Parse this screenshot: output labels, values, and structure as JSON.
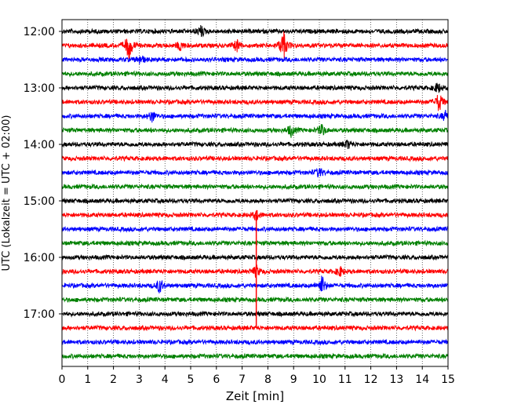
{
  "chart_data": {
    "type": "line",
    "title": "",
    "xlabel": "Zeit  [min]",
    "ylabel": "UTC (Lokalzeit = UTC + 02:00)",
    "xlim": [
      0,
      15
    ],
    "x_ticks": [
      "0",
      "1",
      "2",
      "3",
      "4",
      "5",
      "6",
      "7",
      "8",
      "9",
      "10",
      "11",
      "12",
      "13",
      "14",
      "15"
    ],
    "y_ticks": [
      "12:00",
      "13:00",
      "14:00",
      "15:00",
      "16:00",
      "17:00"
    ],
    "grid": "vertical-dotted",
    "trace_interval_min": 15,
    "trace_colors": [
      "#000000",
      "#ff0000",
      "#0000ff",
      "#008000"
    ],
    "traces": [
      {
        "start": "12:00",
        "color": "#000000",
        "events": [
          {
            "t": 5.4,
            "amp": 0.35
          }
        ]
      },
      {
        "start": "12:15",
        "color": "#ff0000",
        "events": [
          {
            "t": 2.6,
            "amp": 0.9
          },
          {
            "t": 4.6,
            "amp": 0.3
          },
          {
            "t": 6.8,
            "amp": 0.35
          },
          {
            "t": 8.6,
            "amp": 0.9
          }
        ]
      },
      {
        "start": "12:30",
        "color": "#0000ff",
        "events": [
          {
            "t": 3.05,
            "amp": 0.3
          }
        ]
      },
      {
        "start": "12:45",
        "color": "#008000",
        "events": []
      },
      {
        "start": "13:00",
        "color": "#000000",
        "events": [
          {
            "t": 14.6,
            "amp": 0.3
          }
        ]
      },
      {
        "start": "13:15",
        "color": "#ff0000",
        "events": [
          {
            "t": 14.65,
            "amp": 0.6
          }
        ]
      },
      {
        "start": "13:30",
        "color": "#0000ff",
        "events": [
          {
            "t": 3.5,
            "amp": 0.35
          },
          {
            "t": 14.9,
            "amp": 0.3
          }
        ]
      },
      {
        "start": "13:45",
        "color": "#008000",
        "events": [
          {
            "t": 8.9,
            "amp": 0.35
          },
          {
            "t": 10.1,
            "amp": 0.35
          }
        ]
      },
      {
        "start": "14:00",
        "color": "#000000",
        "events": [
          {
            "t": 11.1,
            "amp": 0.25
          }
        ]
      },
      {
        "start": "14:15",
        "color": "#ff0000",
        "events": []
      },
      {
        "start": "14:30",
        "color": "#0000ff",
        "events": [
          {
            "t": 10.0,
            "amp": 0.3
          }
        ]
      },
      {
        "start": "14:45",
        "color": "#008000",
        "events": []
      },
      {
        "start": "15:00",
        "color": "#000000",
        "events": []
      },
      {
        "start": "15:15",
        "color": "#ff0000",
        "events": [
          {
            "t": 7.55,
            "amp": 0.3
          }
        ]
      },
      {
        "start": "15:30",
        "color": "#0000ff",
        "events": []
      },
      {
        "start": "15:45",
        "color": "#008000",
        "events": []
      },
      {
        "start": "16:00",
        "color": "#000000",
        "events": []
      },
      {
        "start": "16:15",
        "color": "#ff0000",
        "events": [
          {
            "t": 7.55,
            "amp": 0.35
          },
          {
            "t": 10.8,
            "amp": 0.3
          }
        ]
      },
      {
        "start": "16:30",
        "color": "#0000ff",
        "events": [
          {
            "t": 3.8,
            "amp": 0.45
          },
          {
            "t": 10.1,
            "amp": 0.6
          }
        ]
      },
      {
        "start": "16:45",
        "color": "#008000",
        "events": []
      },
      {
        "start": "17:00",
        "color": "#000000",
        "events": []
      },
      {
        "start": "17:15",
        "color": "#ff0000",
        "events": []
      },
      {
        "start": "17:30",
        "color": "#0000ff",
        "events": []
      },
      {
        "start": "17:45",
        "color": "#008000",
        "events": []
      }
    ],
    "spikes": [
      {
        "t": 7.55,
        "from_trace": "15:15",
        "to_trace": "17:15",
        "color": "#ff0000"
      }
    ]
  }
}
